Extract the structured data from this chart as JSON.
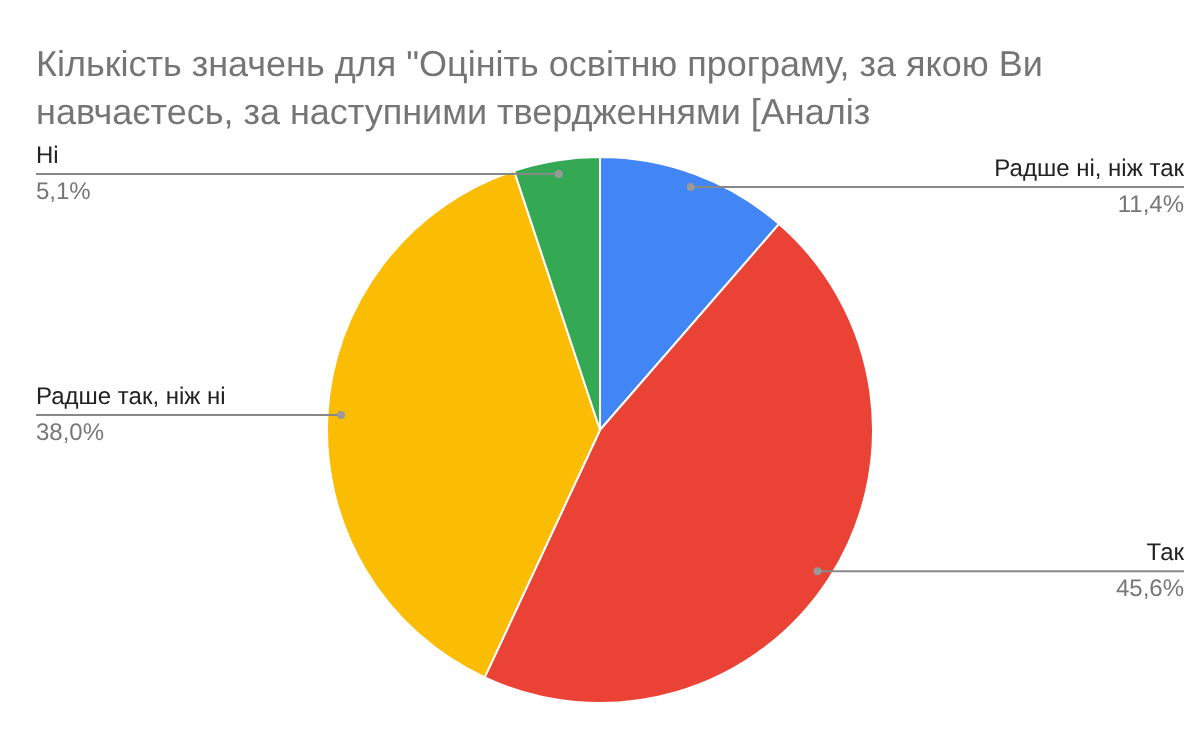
{
  "chart_data": {
    "type": "pie",
    "title": "Кількість значень для \"Оцініть освітню програму, за якою Ви навчаєтесь, за наступними твердженнями [Аналіз",
    "categories": [
      "Радше ні, ніж так",
      "Так",
      "Радше так, ніж ні",
      "Ні"
    ],
    "values": [
      11.4,
      45.6,
      38.0,
      5.1
    ],
    "colors": [
      "#4285f4",
      "#ea4335",
      "#fbbc04",
      "#34a853"
    ],
    "value_labels": [
      "11,4%",
      "45,6%",
      "38,0%",
      "5,1%"
    ],
    "legend": false
  }
}
